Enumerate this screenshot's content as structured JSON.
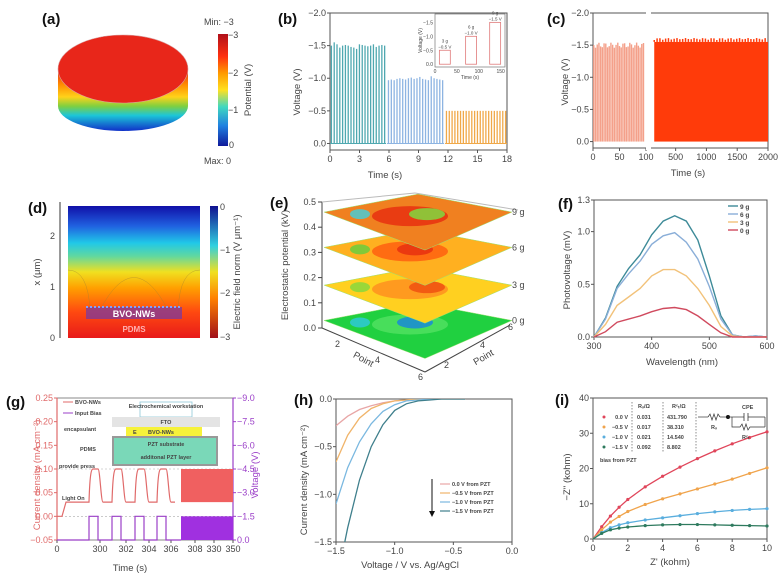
{
  "chart_data": [
    {
      "id": "a",
      "panel_label": "(a)",
      "type": "heatmap",
      "title": "",
      "description": "3D disc colored by potential; top surface red (-3 V), bottom blue (0 V)",
      "colorbar": {
        "label": "Potential (V)",
        "min_label": "Min: −3",
        "max_label": "Max: 0",
        "ticks": [
          "−3",
          "−2",
          "−1",
          "0"
        ],
        "range": [
          -3,
          0
        ]
      }
    },
    {
      "id": "b",
      "panel_label": "(b)",
      "type": "line",
      "xlabel": "Time (s)",
      "ylabel": "Voltage (V)",
      "xlim": [
        0,
        18
      ],
      "ylim": [
        0.1,
        -2.0
      ],
      "xticks": [
        "0",
        "3",
        "6",
        "9",
        "12",
        "15",
        "18"
      ],
      "yticks": [
        "−2.0",
        "−1.5",
        "−1.0",
        "−0.5",
        "0.0"
      ],
      "series": [
        {
          "name": "9 g",
          "color": "#4fa8b0",
          "t_range": [
            0,
            5.7
          ],
          "pulse_count": 20,
          "peak_values": [
            -1.5,
            -1.55,
            -1.52,
            -1.47,
            -1.5,
            -1.51,
            -1.5,
            -1.48,
            -1.47,
            -1.45,
            -1.52,
            -1.51,
            -1.5,
            -1.49,
            -1.5,
            -1.52,
            -1.48,
            -1.5,
            -1.51,
            -1.5
          ]
        },
        {
          "name": "6 g",
          "color": "#8db4e2",
          "t_range": [
            5.8,
            11.6
          ],
          "pulse_count": 20,
          "peak_values": [
            -0.97,
            -0.98,
            -0.97,
            -0.99,
            -1.0,
            -0.99,
            -0.98,
            -1.0,
            -1.01,
            -0.99,
            -1.0,
            -1.02,
            -0.99,
            -0.98,
            -0.97,
            -1.03,
            -1.0,
            -0.99,
            -0.98,
            -0.97
          ]
        },
        {
          "name": "3 g",
          "color": "#f0a848",
          "t_range": [
            11.7,
            18
          ],
          "pulse_count": 22,
          "peak_values": [
            -0.5,
            -0.5,
            -0.5,
            -0.5,
            -0.5,
            -0.5,
            -0.5,
            -0.5,
            -0.5,
            -0.5,
            -0.5,
            -0.5,
            -0.5,
            -0.5,
            -0.5,
            -0.5,
            -0.5,
            -0.5,
            -0.5,
            -0.5,
            -0.5,
            -0.5
          ]
        }
      ],
      "inset": {
        "xlabel": "Time (s)",
        "ylabel": "Voltage (V)",
        "xlim": [
          0,
          160
        ],
        "ylim": [
          0.1,
          -1.8
        ],
        "xticks": [
          "0",
          "50",
          "100",
          "150"
        ],
        "yticks": [
          "−1.5",
          "−1.0",
          "−0.5",
          "0.0"
        ],
        "steps": [
          {
            "label": "3 g",
            "value_label": "−0.5 V",
            "t_start": 10,
            "t_end": 35,
            "value": -0.5
          },
          {
            "label": "6 g",
            "value_label": "−1.0 V",
            "t_start": 70,
            "t_end": 95,
            "value": -1.0
          },
          {
            "label": "9 g",
            "value_label": "−1.5 V",
            "t_start": 125,
            "t_end": 150,
            "value": -1.5
          }
        ]
      }
    },
    {
      "id": "c",
      "panel_label": "(c)",
      "type": "line",
      "xlabel": "Time (s)",
      "ylabel": "Voltage (V)",
      "ylim": [
        0.1,
        -2.0
      ],
      "xticks_left": [
        "0",
        "50",
        "100"
      ],
      "xticks_right": [
        "500",
        "1000",
        "1500",
        "2000"
      ],
      "yticks": [
        "−2.0",
        "−1.5",
        "−1.0",
        "−0.5",
        "0.0"
      ],
      "segments": [
        {
          "t_range": [
            0,
            100
          ],
          "color": "#f4a08a",
          "pulse_peak_approx": -1.5,
          "pulse_count": 30
        },
        {
          "t_range": [
            120,
            2000
          ],
          "color": "#ff3b0a",
          "pulse_peak_approx": -1.55,
          "dense": true
        }
      ]
    },
    {
      "id": "d",
      "panel_label": "(d)",
      "type": "heatmap",
      "ylabel": "x (μm)",
      "yticks": [
        "0",
        "1",
        "2"
      ],
      "ylim": [
        0,
        2.6
      ],
      "annotations": [
        "BVO-NWs",
        "PDMS"
      ],
      "colorbar": {
        "label": "Electric field norm (V μm⁻¹)",
        "ticks": [
          "0",
          "−1",
          "−2",
          "−3"
        ],
        "range": [
          -3,
          0
        ]
      }
    },
    {
      "id": "e",
      "panel_label": "(e)",
      "type": "heatmap",
      "description": "3D stacked contour surfaces of electrostatic potential over a 6x6 point grid for different loads",
      "zlabel": "Electrostatic potential (kV)",
      "zticks": [
        "0.0",
        "0.1",
        "0.2",
        "0.3",
        "0.4",
        "0.5"
      ],
      "zlim": [
        0,
        0.5
      ],
      "xlabel": "Point",
      "ylabel": "Point",
      "xticks": [
        "2",
        "4",
        "6"
      ],
      "yticks": [
        "2",
        "4",
        "6"
      ],
      "layers": [
        {
          "label": "0 g",
          "level": 0.03
        },
        {
          "label": "3 g",
          "level": 0.17
        },
        {
          "label": "6 g",
          "level": 0.32
        },
        {
          "label": "9 g",
          "level": 0.46
        }
      ]
    },
    {
      "id": "f",
      "panel_label": "(f)",
      "type": "line",
      "xlabel": "Wavelength (nm)",
      "ylabel": "Photovoltage (mV)",
      "xlim": [
        300,
        600
      ],
      "ylim": [
        0,
        1.3
      ],
      "xticks": [
        "300",
        "400",
        "500",
        "600"
      ],
      "yticks": [
        "0.0",
        "0.5",
        "1.0"
      ],
      "x": [
        300,
        320,
        340,
        360,
        380,
        400,
        420,
        440,
        460,
        480,
        500,
        520,
        540,
        560,
        580,
        600
      ],
      "series": [
        {
          "name": "9 g",
          "color": "#3d8a98",
          "values": [
            0.0,
            0.18,
            0.48,
            0.65,
            0.78,
            0.97,
            1.1,
            1.15,
            1.1,
            0.92,
            0.58,
            0.2,
            0.02,
            0.0,
            0.01,
            0.0
          ]
        },
        {
          "name": "6 g",
          "color": "#8aaed8",
          "values": [
            0.0,
            0.17,
            0.46,
            0.6,
            0.72,
            0.88,
            0.96,
            0.99,
            0.9,
            0.74,
            0.48,
            0.17,
            0.02,
            0.0,
            0.01,
            0.0
          ]
        },
        {
          "name": "3 g",
          "color": "#f2c27a",
          "values": [
            0.0,
            0.12,
            0.3,
            0.38,
            0.46,
            0.58,
            0.64,
            0.64,
            0.58,
            0.46,
            0.3,
            0.1,
            0.01,
            0.0,
            0.0,
            0.0
          ]
        },
        {
          "name": "0 g",
          "color": "#d04a5e",
          "values": [
            0.0,
            0.05,
            0.14,
            0.17,
            0.2,
            0.24,
            0.27,
            0.28,
            0.26,
            0.2,
            0.12,
            0.04,
            0.0,
            0.0,
            0.0,
            0.0
          ]
        }
      ]
    },
    {
      "id": "g",
      "panel_label": "(g)",
      "type": "line",
      "xlabel": "Time (s)",
      "ylabel_left": "Current density (mA cm⁻²)",
      "ylabel_right": "Voltage (V)",
      "ylim_left": [
        -0.05,
        0.25
      ],
      "ylim_right": [
        0,
        -9.0
      ],
      "xticks": [
        "0",
        "300",
        "302",
        "304",
        "306",
        "308",
        "330",
        "350"
      ],
      "yticks_left": [
        "−0.05",
        "0.00",
        "0.05",
        "0.10",
        "0.15",
        "0.20",
        "0.25"
      ],
      "yticks_right": [
        "0.0",
        "−1.5",
        "−3.0",
        "−4.5",
        "−6.0",
        "−7.5",
        "−9.0"
      ],
      "legend": [
        {
          "name": "BVO-NWs",
          "color": "#e06a6a"
        },
        {
          "name": "Input Bias",
          "color": "#9b3fc8"
        }
      ],
      "annotations": [
        "Light On"
      ],
      "schematic_labels": [
        "Electrochemical workstation",
        "FTO",
        "E",
        "BVO-NWs",
        "PZT substrate",
        "additonal PZT layer",
        "encapsulant",
        "PDMS",
        "provide press"
      ],
      "series": [
        {
          "name": "BVO-NWs",
          "baseline": 0.03,
          "peak": 0.1,
          "dark_level": 0.0
        },
        {
          "name": "Input Bias",
          "baseline_V": 0.0,
          "peak_V": -1.5
        }
      ]
    },
    {
      "id": "h",
      "panel_label": "(h)",
      "type": "line",
      "xlabel": "Voltage / V vs. Ag/AgCl",
      "ylabel": "Current density (mA cm⁻²)",
      "xlim": [
        -1.5,
        0.0
      ],
      "ylim": [
        -1.5,
        0.0
      ],
      "xticks": [
        "−1.5",
        "−1.0",
        "−0.5",
        "0.0"
      ],
      "yticks": [
        "0.0",
        "−0.5",
        "−1.0",
        "−1.5"
      ],
      "x": [
        -1.5,
        -1.4,
        -1.3,
        -1.2,
        -1.1,
        -1.0,
        -0.9,
        -0.8,
        -0.7,
        -0.6,
        -0.5,
        -0.4
      ],
      "series": [
        {
          "name": "0.0 V from PZT",
          "color": "#e8a6a6",
          "values": [
            -0.28,
            -0.18,
            -0.11,
            -0.07,
            -0.04,
            -0.02,
            -0.01,
            -0.005,
            0,
            0,
            0,
            0
          ]
        },
        {
          "name": "−0.5 V from PZT",
          "color": "#f0b46a",
          "values": [
            -0.66,
            -0.38,
            -0.2,
            -0.1,
            -0.05,
            -0.02,
            -0.01,
            0,
            0,
            0,
            0,
            0
          ]
        },
        {
          "name": "−1.0 V from PZT",
          "color": "#7ab8e0",
          "values": [
            -1.1,
            -0.72,
            -0.45,
            -0.26,
            -0.13,
            -0.06,
            -0.02,
            -0.01,
            0,
            0,
            0,
            0
          ]
        },
        {
          "name": "−1.5 V from PZT",
          "color": "#3f7f8c",
          "values": [
            -1.95,
            -1.35,
            -0.85,
            -0.5,
            -0.27,
            -0.12,
            -0.05,
            -0.02,
            -0.01,
            0,
            0,
            0
          ]
        }
      ],
      "legend_arrow": "down"
    },
    {
      "id": "i",
      "panel_label": "(i)",
      "type": "scatter",
      "xlabel": "Z' (kohm)",
      "ylabel": "−Z'' (kohm)",
      "xlim": [
        0,
        10
      ],
      "ylim": [
        0,
        40
      ],
      "xticks": [
        "0",
        "2",
        "4",
        "6",
        "8",
        "10"
      ],
      "yticks": [
        "0",
        "10",
        "20",
        "30",
        "40"
      ],
      "table": {
        "headers": [
          "",
          "Rₛ/Ω",
          "Rᶜₜ/Ω"
        ],
        "rows": [
          {
            "label": "0.0 V",
            "rs": "0.031",
            "rct": "431.790"
          },
          {
            "label": "−0.5 V",
            "rs": "0.017",
            "rct": "38.310"
          },
          {
            "label": "−1.0 V",
            "rs": "0.021",
            "rct": "14.540"
          },
          {
            "label": "−1.5 V",
            "rs": "0.092",
            "rct": "8.802"
          }
        ],
        "footer": "bias from PZT"
      },
      "circuit_labels": [
        "CPE",
        "Rₛ",
        "Rᶜₜ"
      ],
      "x": [
        0,
        0.5,
        1,
        1.5,
        2,
        3,
        4,
        5,
        6,
        7,
        8,
        9,
        10
      ],
      "series": [
        {
          "name": "0.0 V",
          "color": "#e0455a",
          "values": [
            0,
            3.5,
            6.5,
            9.0,
            11.2,
            14.8,
            17.8,
            20.4,
            22.8,
            25.0,
            27.0,
            28.8,
            30.4
          ]
        },
        {
          "name": "−0.5 V",
          "color": "#f0a44c",
          "values": [
            0,
            2.6,
            4.8,
            6.4,
            7.8,
            9.8,
            11.4,
            12.8,
            14.2,
            15.6,
            17.0,
            18.6,
            20.2
          ]
        },
        {
          "name": "−1.0 V",
          "color": "#5aaede",
          "values": [
            0,
            1.8,
            3.2,
            4.0,
            4.6,
            5.4,
            6.0,
            6.6,
            7.2,
            7.7,
            8.1,
            8.4,
            8.6
          ]
        },
        {
          "name": "−1.5 V",
          "color": "#2e7a5e",
          "values": [
            0,
            1.6,
            2.6,
            3.1,
            3.4,
            3.8,
            4.0,
            4.1,
            4.1,
            4.0,
            3.9,
            3.8,
            3.7
          ]
        }
      ]
    }
  ]
}
